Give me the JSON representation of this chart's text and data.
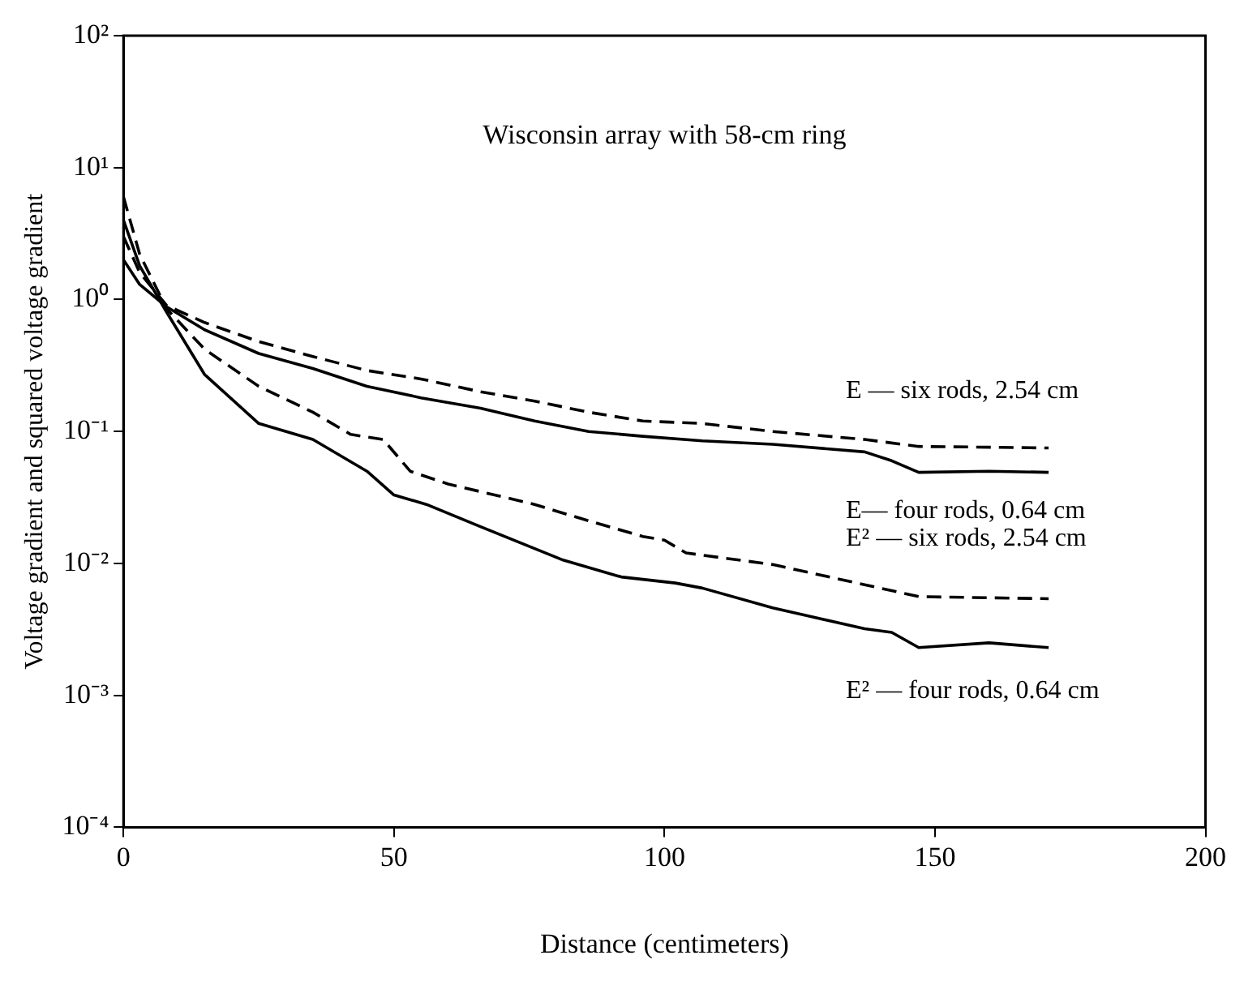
{
  "chart_data": {
    "type": "line",
    "title": "Wisconsin array with 58-cm ring",
    "xlabel": "Distance (centimeters)",
    "ylabel": "Voltage gradient and squared voltage gradient",
    "log": "y",
    "grid": false,
    "legend": false,
    "marker": "none",
    "xlim": [
      0,
      200
    ],
    "xticks": [
      0,
      50,
      100,
      150,
      200
    ],
    "ylim": [
      0.0001,
      100
    ],
    "yticks": [
      {
        "value": 0.0001,
        "label": "10⁻⁴"
      },
      {
        "value": 0.001,
        "label": "10⁻³"
      },
      {
        "value": 0.01,
        "label": "10⁻²"
      },
      {
        "value": 0.1,
        "label": "10⁻¹"
      },
      {
        "value": 1,
        "label": "10⁰"
      },
      {
        "value": 10,
        "label": "10¹"
      },
      {
        "value": 100,
        "label": "10²"
      }
    ],
    "series": [
      {
        "name": "E — six rods, 2.54 cm",
        "color": "#000000",
        "line_style": "dashed",
        "x": [
          0,
          3,
          8,
          15,
          25,
          35,
          45,
          55,
          66,
          76,
          86,
          96,
          107,
          120,
          137,
          147,
          160,
          171
        ],
        "values": [
          3,
          1.6,
          0.9,
          0.67,
          0.48,
          0.37,
          0.29,
          0.25,
          0.2,
          0.17,
          0.14,
          0.12,
          0.115,
          0.1,
          0.087,
          0.077,
          0.076,
          0.075
        ]
      },
      {
        "name": "E— four rods, 0.64 cm",
        "color": "#000000",
        "line_style": "solid",
        "x": [
          0,
          3,
          8,
          15,
          25,
          35,
          45,
          55,
          66,
          76,
          86,
          96,
          107,
          120,
          137,
          142,
          147,
          160,
          171
        ],
        "values": [
          2,
          1.3,
          0.88,
          0.59,
          0.39,
          0.3,
          0.22,
          0.18,
          0.15,
          0.12,
          0.1,
          0.092,
          0.085,
          0.08,
          0.07,
          0.06,
          0.049,
          0.05,
          0.049
        ]
      },
      {
        "name": "E² — six rods, 2.54 cm",
        "color": "#000000",
        "line_style": "dashed",
        "x": [
          0,
          3,
          8,
          15,
          25,
          35,
          42,
          48,
          53,
          60,
          76,
          86,
          96,
          100,
          104,
          120,
          137,
          147,
          171
        ],
        "values": [
          6,
          2.2,
          0.85,
          0.42,
          0.22,
          0.14,
          0.095,
          0.087,
          0.05,
          0.04,
          0.028,
          0.021,
          0.016,
          0.015,
          0.012,
          0.0098,
          0.0069,
          0.0056,
          0.0054
        ]
      },
      {
        "name": "E² — four rods, 0.64 cm",
        "color": "#000000",
        "line_style": "solid",
        "x": [
          0,
          3,
          8,
          15,
          25,
          35,
          45,
          50,
          56,
          66,
          81,
          92,
          102,
          107,
          120,
          137,
          142,
          147,
          160,
          171
        ],
        "values": [
          4,
          1.8,
          0.8,
          0.27,
          0.115,
          0.087,
          0.05,
          0.033,
          0.028,
          0.019,
          0.0107,
          0.0079,
          0.0071,
          0.0065,
          0.0046,
          0.0032,
          0.003,
          0.0023,
          0.0025,
          0.0023
        ]
      }
    ]
  }
}
